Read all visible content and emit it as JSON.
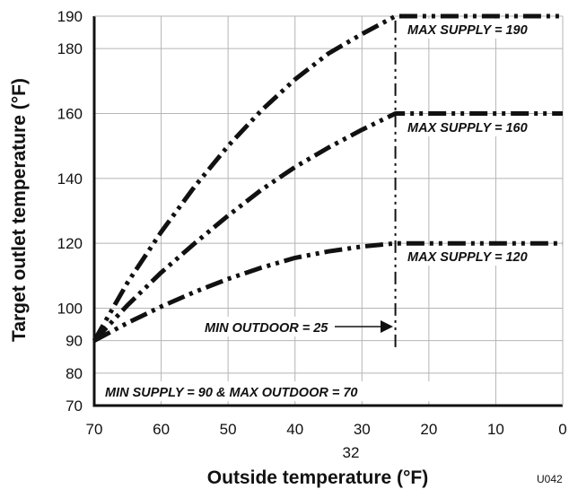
{
  "chart_data": {
    "type": "line",
    "xlabel": "Outside temperature (°F)",
    "ylabel": "Target outlet temperature (°F)",
    "xlim": [
      70,
      0
    ],
    "ylim": [
      70,
      190
    ],
    "x_ticks": [
      70,
      60,
      50,
      40,
      30,
      20,
      10,
      0
    ],
    "extra_x_tick": "32",
    "y_ticks": [
      70,
      80,
      90,
      100,
      120,
      140,
      160,
      180,
      190
    ],
    "grid": true,
    "series": [
      {
        "max_label": "MAX SUPPLY = 190",
        "x": [
          70,
          65,
          60,
          55,
          50,
          45,
          40,
          35,
          30,
          25,
          0
        ],
        "y": [
          90,
          108,
          123.5,
          137.5,
          150,
          161,
          170.5,
          178.5,
          184.5,
          190,
          190
        ]
      },
      {
        "max_label": "MAX SUPPLY = 160",
        "x": [
          70,
          65,
          60,
          55,
          50,
          45,
          40,
          35,
          30,
          25,
          0
        ],
        "y": [
          90,
          101,
          111,
          120,
          128.5,
          136.5,
          143.5,
          149.5,
          155,
          160,
          160
        ]
      },
      {
        "max_label": "MAX SUPPLY = 120",
        "x": [
          70,
          65,
          60,
          55,
          50,
          45,
          40,
          35,
          30,
          25,
          0
        ],
        "y": [
          90,
          95.5,
          100.5,
          105,
          109,
          112.5,
          115.5,
          117.5,
          119,
          120,
          120
        ]
      }
    ],
    "min_outdoor_line": {
      "x": 25,
      "y_from": 88,
      "y_to": 190
    },
    "annotations": {
      "min_outdoor": "MIN OUTDOOR = 25",
      "min_supply": "MIN SUPPLY = 90 & MAX OUTDOOR = 70"
    },
    "figure_code": "U042"
  }
}
